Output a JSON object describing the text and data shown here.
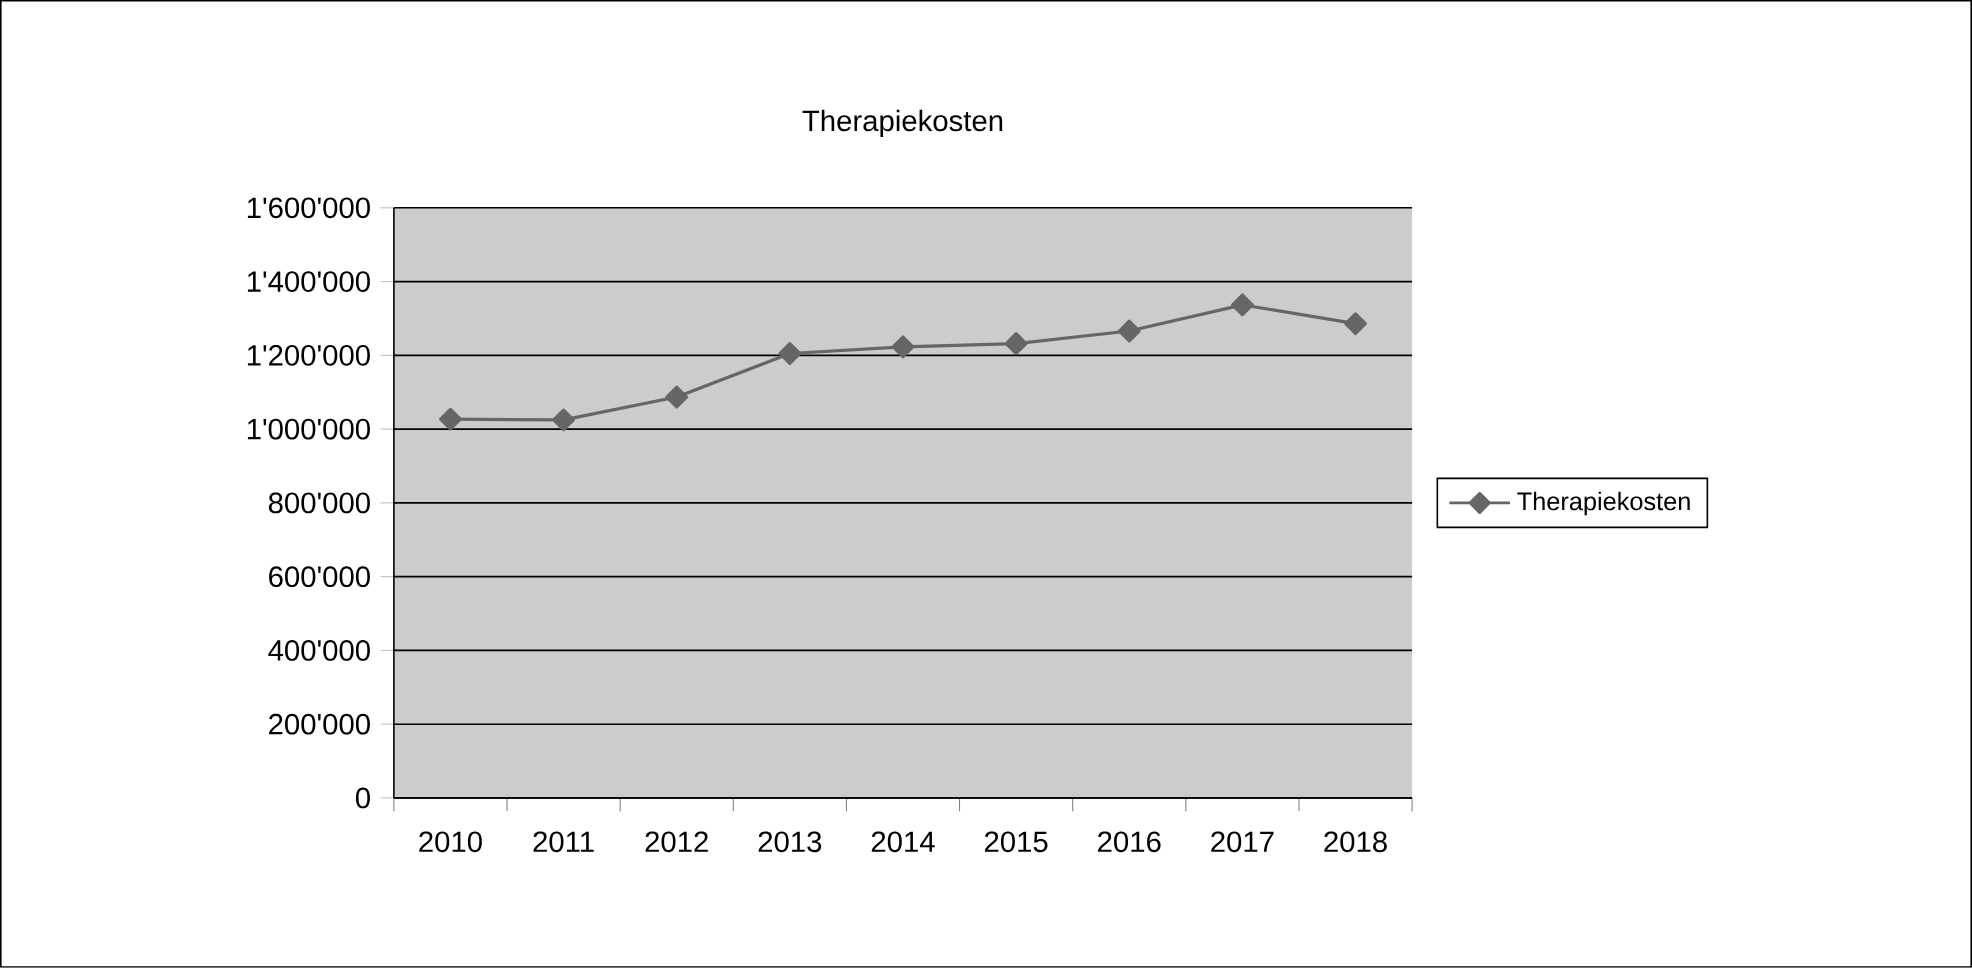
{
  "chart_data": {
    "type": "line",
    "title": "Therapiekosten",
    "categories": [
      "2010",
      "2011",
      "2012",
      "2013",
      "2014",
      "2015",
      "2016",
      "2017",
      "2018"
    ],
    "series": [
      {
        "name": "Therapiekosten",
        "color": "#666666",
        "values": [
          1027000,
          1025000,
          1087000,
          1205000,
          1223000,
          1232000,
          1266000,
          1337000,
          1286000
        ]
      }
    ],
    "ylim": [
      0,
      1600000
    ],
    "yticks": [
      {
        "value": 0,
        "label": "0"
      },
      {
        "value": 200000,
        "label": "200'000"
      },
      {
        "value": 400000,
        "label": "400'000"
      },
      {
        "value": 600000,
        "label": "600'000"
      },
      {
        "value": 800000,
        "label": "800'000"
      },
      {
        "value": 1000000,
        "label": "1'000'000"
      },
      {
        "value": 1200000,
        "label": "1'200'000"
      },
      {
        "value": 1400000,
        "label": "1'400'000"
      },
      {
        "value": 1600000,
        "label": "1'600'000"
      }
    ],
    "grid": "y",
    "legend": "right",
    "marker": "diamond",
    "line_style": "solid"
  }
}
